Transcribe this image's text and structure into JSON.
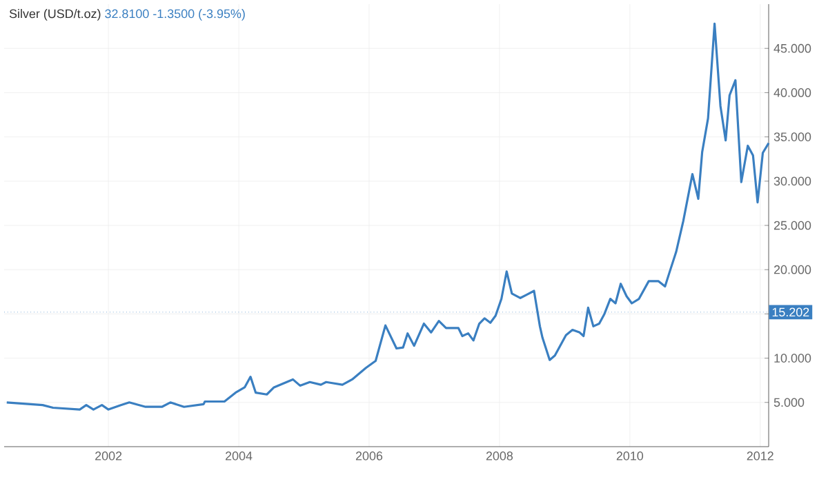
{
  "chart_data": {
    "type": "line",
    "title": "Silver (USD/t.oz)",
    "subtitle": "32.8100  -1.3500 (-3.95%)",
    "x": [
      2000.44,
      2000.99,
      2001.15,
      2001.56,
      2001.66,
      2001.77,
      2001.9,
      2002.0,
      2002.19,
      2002.32,
      2002.57,
      2002.82,
      2002.95,
      2003.16,
      2003.46,
      2003.48,
      2003.78,
      2003.95,
      2004.09,
      2004.18,
      2004.26,
      2004.43,
      2004.54,
      2004.83,
      2004.94,
      2005.09,
      2005.26,
      2005.34,
      2005.42,
      2005.59,
      2005.74,
      2005.95,
      2006.1,
      2006.25,
      2006.42,
      2006.52,
      2006.59,
      2006.69,
      2006.84,
      2006.95,
      2007.07,
      2007.18,
      2007.37,
      2007.43,
      2007.52,
      2007.6,
      2007.69,
      2007.77,
      2007.86,
      2007.94,
      2008.03,
      2008.11,
      2008.19,
      2008.32,
      2008.53,
      2008.62,
      2008.66,
      2008.77,
      2008.85,
      2009.02,
      2009.12,
      2009.23,
      2009.29,
      2009.36,
      2009.44,
      2009.53,
      2009.61,
      2009.7,
      2009.78,
      2009.86,
      2009.95,
      2010.03,
      2010.14,
      2010.29,
      2010.44,
      2010.54,
      2010.6,
      2010.71,
      2010.82,
      2010.96,
      2011.05,
      2011.11,
      2011.2,
      2011.3,
      2011.39,
      2011.47,
      2011.53,
      2011.62,
      2011.71,
      2011.81,
      2011.89,
      2011.96,
      2012.04,
      2012.13
    ],
    "series": [
      {
        "color": "#3a7fc1",
        "values": [
          5.0,
          4.7,
          4.4,
          4.2,
          4.7,
          4.2,
          4.7,
          4.2,
          4.7,
          5.0,
          4.5,
          4.5,
          5.0,
          4.5,
          4.8,
          5.1,
          5.1,
          6.1,
          6.7,
          7.9,
          6.1,
          5.9,
          6.7,
          7.6,
          6.9,
          7.3,
          7.0,
          7.3,
          7.2,
          7.0,
          7.6,
          8.9,
          9.7,
          13.7,
          11.1,
          11.2,
          12.8,
          11.4,
          13.9,
          12.9,
          14.2,
          13.4,
          13.4,
          12.5,
          12.8,
          12.0,
          13.9,
          14.5,
          14.0,
          14.8,
          16.7,
          19.8,
          17.3,
          16.8,
          17.6,
          13.6,
          12.3,
          9.8,
          10.3,
          12.6,
          13.2,
          12.9,
          12.5,
          15.7,
          13.6,
          13.9,
          15.0,
          16.7,
          16.2,
          18.4,
          17.0,
          16.2,
          16.7,
          18.7,
          18.7,
          18.1,
          19.5,
          22.0,
          25.5,
          30.8,
          28.0,
          33.3,
          37.1,
          47.8,
          38.5,
          34.6,
          39.7,
          41.4,
          29.9,
          34.0,
          32.9,
          27.6,
          33.2,
          34.3
        ]
      }
    ],
    "xlim": [
      2000.4,
      2012.13
    ],
    "ylim": [
      0,
      50
    ],
    "xticks": [
      2002,
      2004,
      2006,
      2008,
      2010,
      2012
    ],
    "yticks": [
      {
        "value": 5,
        "label": "5.000"
      },
      {
        "value": 10,
        "label": "10.000"
      },
      {
        "value": 15,
        "label": null
      },
      {
        "value": 20,
        "label": "20.000"
      },
      {
        "value": 25,
        "label": "25.000"
      },
      {
        "value": 30,
        "label": "30.000"
      },
      {
        "value": 35,
        "label": "35.000"
      },
      {
        "value": 40,
        "label": "40.000"
      },
      {
        "value": 45,
        "label": "45.000"
      }
    ],
    "ref_lines": [
      {
        "axis": "y",
        "value": 15.202,
        "label": "15.202",
        "color": "#3a7fc1",
        "line_style": "dotted"
      }
    ],
    "grid": true,
    "marker": "none",
    "line_style": "solid"
  }
}
